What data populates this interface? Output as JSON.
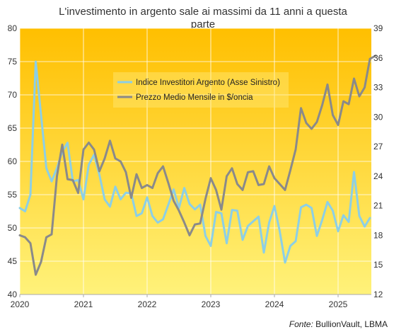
{
  "chart_data": {
    "type": "line",
    "title_lines": [
      "L'investimento in argento sale ai massimi da 11 anni a questa",
      "parte"
    ],
    "source_prefix": "Fonte:",
    "source_text": " BullionVault, LBMA",
    "x_start": "2020-01",
    "x_ticks": [
      "2020",
      "2021",
      "2022",
      "2023",
      "2024",
      "2025"
    ],
    "y_left": {
      "lim": [
        40,
        80
      ],
      "ticks": [
        "40",
        "45",
        "50",
        "55",
        "60",
        "65",
        "70",
        "75",
        "80"
      ]
    },
    "y_right": {
      "lim": [
        12,
        39
      ],
      "ticks": [
        "12",
        "15",
        "18",
        "21",
        "24",
        "27",
        "30",
        "33",
        "36",
        "39"
      ]
    },
    "grid": true,
    "legend_position": "top-center",
    "background_gradient": [
      "#ffbf00",
      "#fff27a"
    ],
    "series": [
      {
        "name": "Indice Investitori Argento (Asse Sinistro)",
        "axis": "left",
        "color": "#8ccfe6",
        "values": [
          53.0,
          52.5,
          55.0,
          75.0,
          67.0,
          59.0,
          57.0,
          59.0,
          61.5,
          62.8,
          57.0,
          57.2,
          54.3,
          59.5,
          61.0,
          58.0,
          54.3,
          53.2,
          56.2,
          54.3,
          55.3,
          55.2,
          51.8,
          52.2,
          54.6,
          51.8,
          50.8,
          51.3,
          53.5,
          55.8,
          53.0,
          56.0,
          53.6,
          52.8,
          53.5,
          48.8,
          47.3,
          52.4,
          52.2,
          47.7,
          52.7,
          52.6,
          48.2,
          50.3,
          51.0,
          51.7,
          46.3,
          50.8,
          53.3,
          49.5,
          44.8,
          47.3,
          48.0,
          53.1,
          53.5,
          53.0,
          48.8,
          51.2,
          53.9,
          52.6,
          49.5,
          51.9,
          50.9,
          58.4,
          51.8,
          50.2,
          51.5
        ]
      },
      {
        "name": "Prezzo Medio Mensile in $/oncia",
        "axis": "right",
        "color": "#8a8a8a",
        "values": [
          18.0,
          17.8,
          17.2,
          14.0,
          15.3,
          17.8,
          18.1,
          24.0,
          27.2,
          23.7,
          23.6,
          22.3,
          26.7,
          27.4,
          26.7,
          24.5,
          25.8,
          27.6,
          25.8,
          25.5,
          24.4,
          21.8,
          24.2,
          22.8,
          23.1,
          22.8,
          24.3,
          25.0,
          23.3,
          21.5,
          20.5,
          19.3,
          18.0,
          19.1,
          19.2,
          21.7,
          23.8,
          22.6,
          20.6,
          24.0,
          24.8,
          23.2,
          22.6,
          24.4,
          24.5,
          23.1,
          23.2,
          25.0,
          23.8,
          23.2,
          22.6,
          24.6,
          26.7,
          30.9,
          29.4,
          28.8,
          29.5,
          31.2,
          33.3,
          30.2,
          29.2,
          31.6,
          31.3,
          33.9,
          32.1,
          33.0,
          35.9,
          36.2
        ]
      }
    ]
  }
}
